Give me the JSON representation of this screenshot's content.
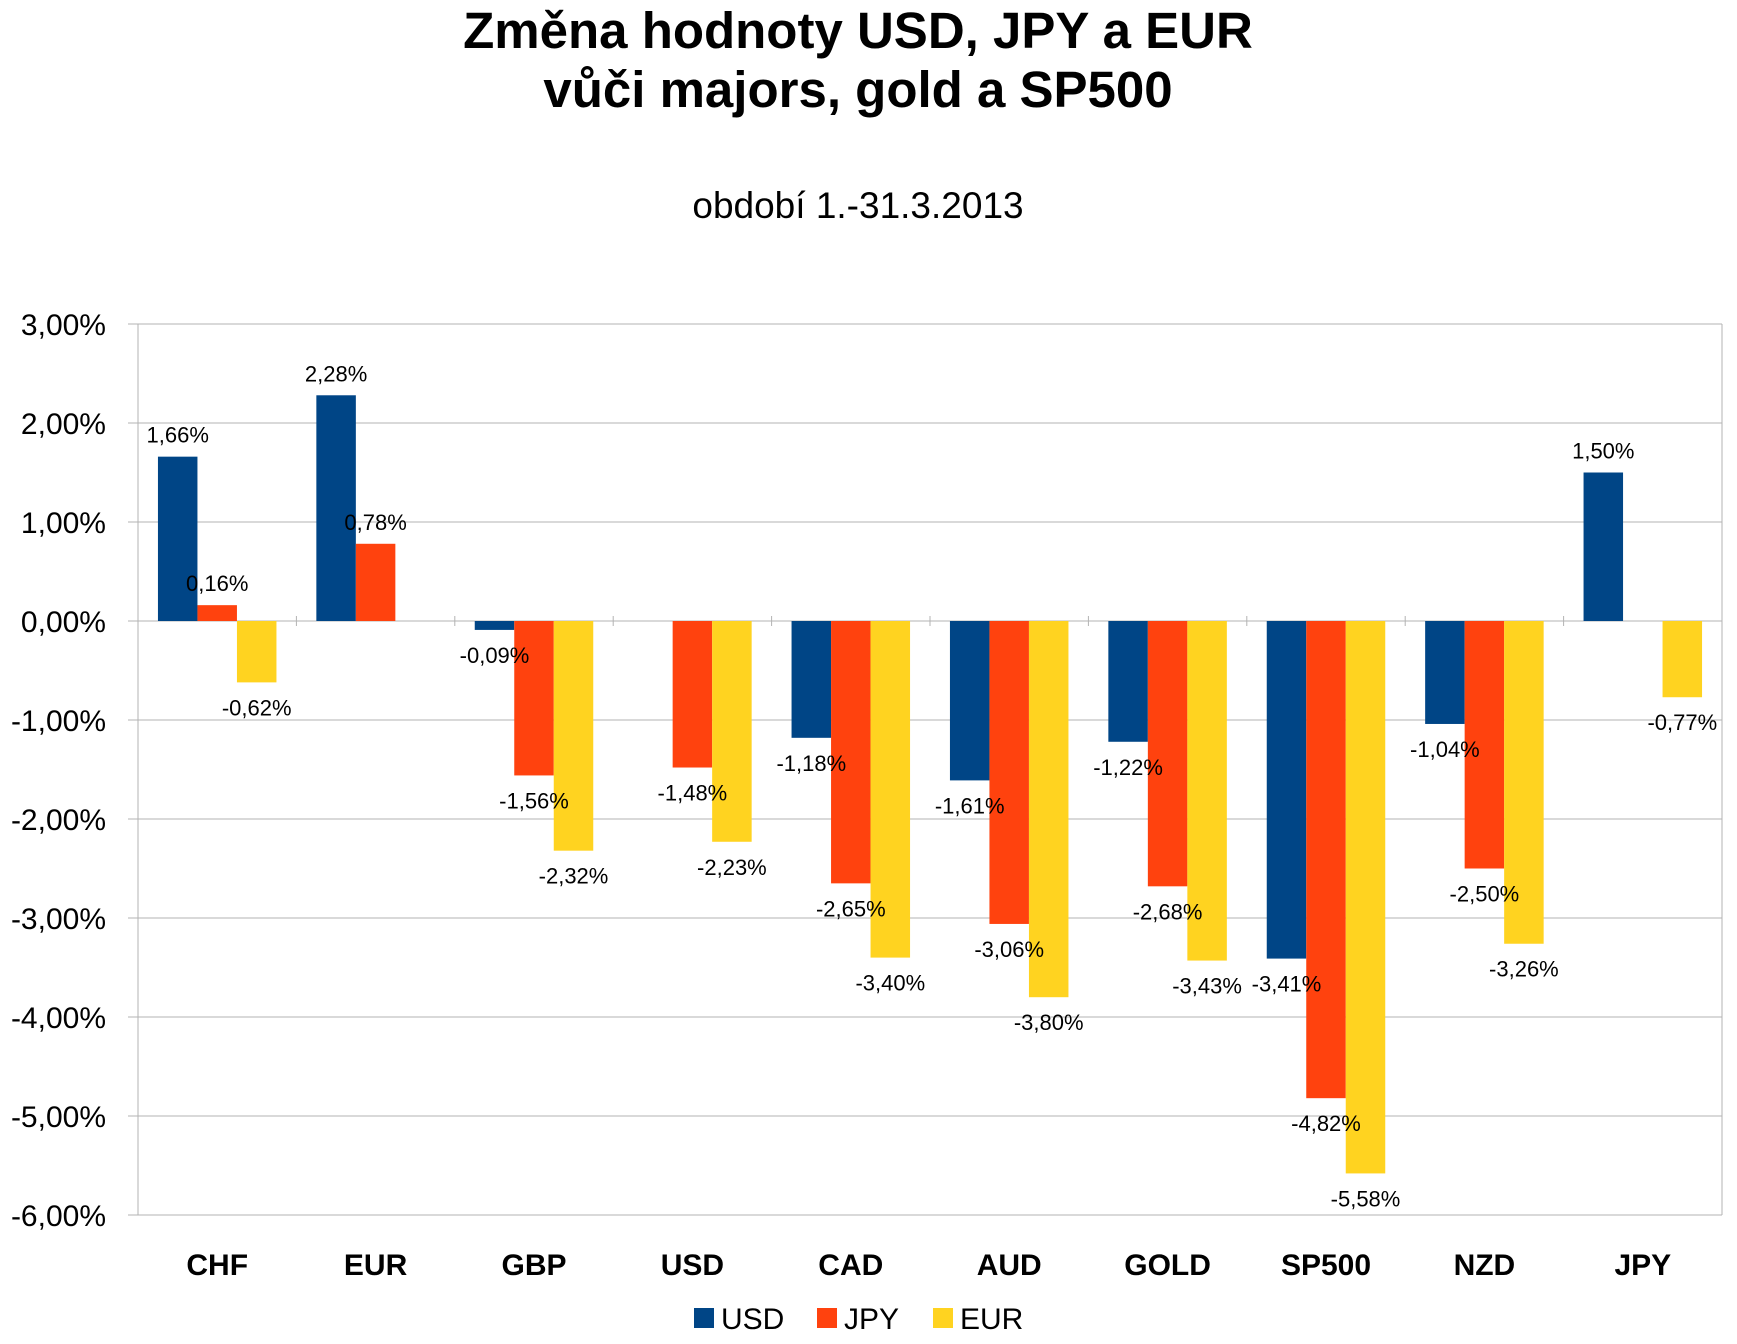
{
  "chart_data": {
    "type": "bar",
    "title": [
      "Změna hodnoty USD, JPY a EUR",
      "vůči majors, gold a SP500"
    ],
    "subtitle": "období 1.-31.3.2013",
    "categories": [
      "CHF",
      "EUR",
      "GBP",
      "USD",
      "CAD",
      "AUD",
      "GOLD",
      "SP500",
      "NZD",
      "JPY"
    ],
    "series": [
      {
        "name": "USD",
        "color": "#004586",
        "values": [
          1.66,
          2.28,
          -0.09,
          null,
          -1.18,
          -1.61,
          -1.22,
          -3.41,
          -1.04,
          1.5
        ],
        "labels": [
          "1,66%",
          "2,28%",
          "-0,09%",
          "",
          "-1,18%",
          "-1,61%",
          "-1,22%",
          "-3,41%",
          "-1,04%",
          "1,50%"
        ]
      },
      {
        "name": "JPY",
        "color": "#ff420e",
        "values": [
          0.16,
          0.78,
          -1.56,
          -1.48,
          -2.65,
          -3.06,
          -2.68,
          -4.82,
          -2.5,
          null
        ],
        "labels": [
          "0,16%",
          "0,78%",
          "-1,56%",
          "-1,48%",
          "-2,65%",
          "-3,06%",
          "-2,68%",
          "-4,82%",
          "-2,50%",
          ""
        ]
      },
      {
        "name": "EUR",
        "color": "#ffd320",
        "values": [
          -0.62,
          null,
          -2.32,
          -2.23,
          -3.4,
          -3.8,
          -3.43,
          -5.58,
          -3.26,
          -0.77
        ],
        "labels": [
          "-0,62%",
          "",
          "-2,32%",
          "-2,23%",
          "-3,40%",
          "-3,80%",
          "-3,43%",
          "-5,58%",
          "-3,26%",
          "-0,77%"
        ]
      }
    ],
    "ylim": [
      -6,
      3
    ],
    "yticks": [
      3,
      2,
      1,
      0,
      -1,
      -2,
      -3,
      -4,
      -5,
      -6
    ],
    "ytick_labels": [
      "3,00%",
      "2,00%",
      "1,00%",
      "0,00%",
      "-1,00%",
      "-2,00%",
      "-3,00%",
      "-4,00%",
      "-5,00%",
      "-6,00%"
    ],
    "grid": true,
    "legend_position": "bottom"
  }
}
